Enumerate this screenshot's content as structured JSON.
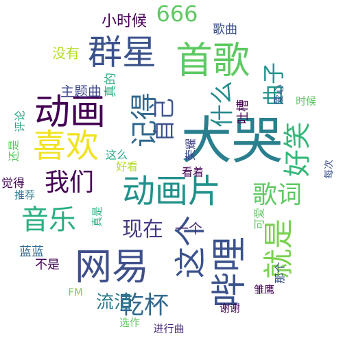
{
  "words": [
    {
      "text": "大哭",
      "color": "#2a7f8e"
    },
    {
      "text": "网易",
      "color": "#3e4f8b"
    },
    {
      "text": "哔哩",
      "color": "#3b528b"
    },
    {
      "text": "动画",
      "color": "#440154"
    },
    {
      "text": "群星",
      "color": "#3b528b"
    },
    {
      "text": "首歌",
      "color": "#5ec962"
    },
    {
      "text": "喜欢",
      "color": "#f0e31f"
    },
    {
      "text": "动画片",
      "color": "#21918c"
    },
    {
      "text": "这个",
      "color": "#3b528b"
    },
    {
      "text": "就是",
      "color": "#7ad151"
    },
    {
      "text": "音乐",
      "color": "#29af7f"
    },
    {
      "text": "记得",
      "color": "#31688e"
    },
    {
      "text": "好笑",
      "color": "#35b779"
    },
    {
      "text": "我们",
      "color": "#440154"
    },
    {
      "text": "歌词",
      "color": "#5ec962"
    },
    {
      "text": "乾杯",
      "color": "#31688e"
    },
    {
      "text": "什么",
      "color": "#238a8d"
    },
    {
      "text": "666",
      "color": "#5ec962"
    },
    {
      "text": "自己",
      "color": "#3b528b"
    },
    {
      "text": "曲子",
      "color": "#21918c"
    },
    {
      "text": "现在",
      "color": "#443a83"
    },
    {
      "text": "流泪",
      "color": "#2a788e"
    },
    {
      "text": "一个",
      "color": "#482878"
    },
    {
      "text": "小时候",
      "color": "#440154"
    },
    {
      "text": "主题曲",
      "color": "#3e4a89"
    },
    {
      "text": "没有",
      "color": "#b5de2b"
    },
    {
      "text": "歌曲",
      "color": "#3b528b"
    },
    {
      "text": "真的",
      "color": "#29af7f"
    },
    {
      "text": "吐槽",
      "color": "#440154"
    },
    {
      "text": "爱心",
      "color": "#3b528b"
    },
    {
      "text": "时候",
      "color": "#5ec962"
    },
    {
      "text": "评论",
      "color": "#22a884"
    },
    {
      "text": "还是",
      "color": "#5ec962"
    },
    {
      "text": "荣耀",
      "color": "#414487"
    },
    {
      "text": "这么",
      "color": "#22a884"
    },
    {
      "text": "好看",
      "color": "#b5de2b"
    },
    {
      "text": "每次",
      "color": "#3b528b"
    },
    {
      "text": "觉得",
      "color": "#440154"
    },
    {
      "text": "推荐",
      "color": "#2a788e"
    },
    {
      "text": "可爱",
      "color": "#5ec962"
    },
    {
      "text": "看着",
      "color": "#440154"
    },
    {
      "text": "真是",
      "color": "#29af7f"
    },
    {
      "text": "蓝蓝",
      "color": "#31688e"
    },
    {
      "text": "不是",
      "color": "#440154"
    },
    {
      "text": "那个",
      "color": "#3b528b"
    },
    {
      "text": "雏鹰",
      "color": "#440154"
    },
    {
      "text": "FM",
      "color": "#7ad151"
    },
    {
      "text": "谢谢",
      "color": "#440154"
    },
    {
      "text": "选作",
      "color": "#5ec962"
    },
    {
      "text": "进行曲",
      "color": "#482878"
    }
  ]
}
